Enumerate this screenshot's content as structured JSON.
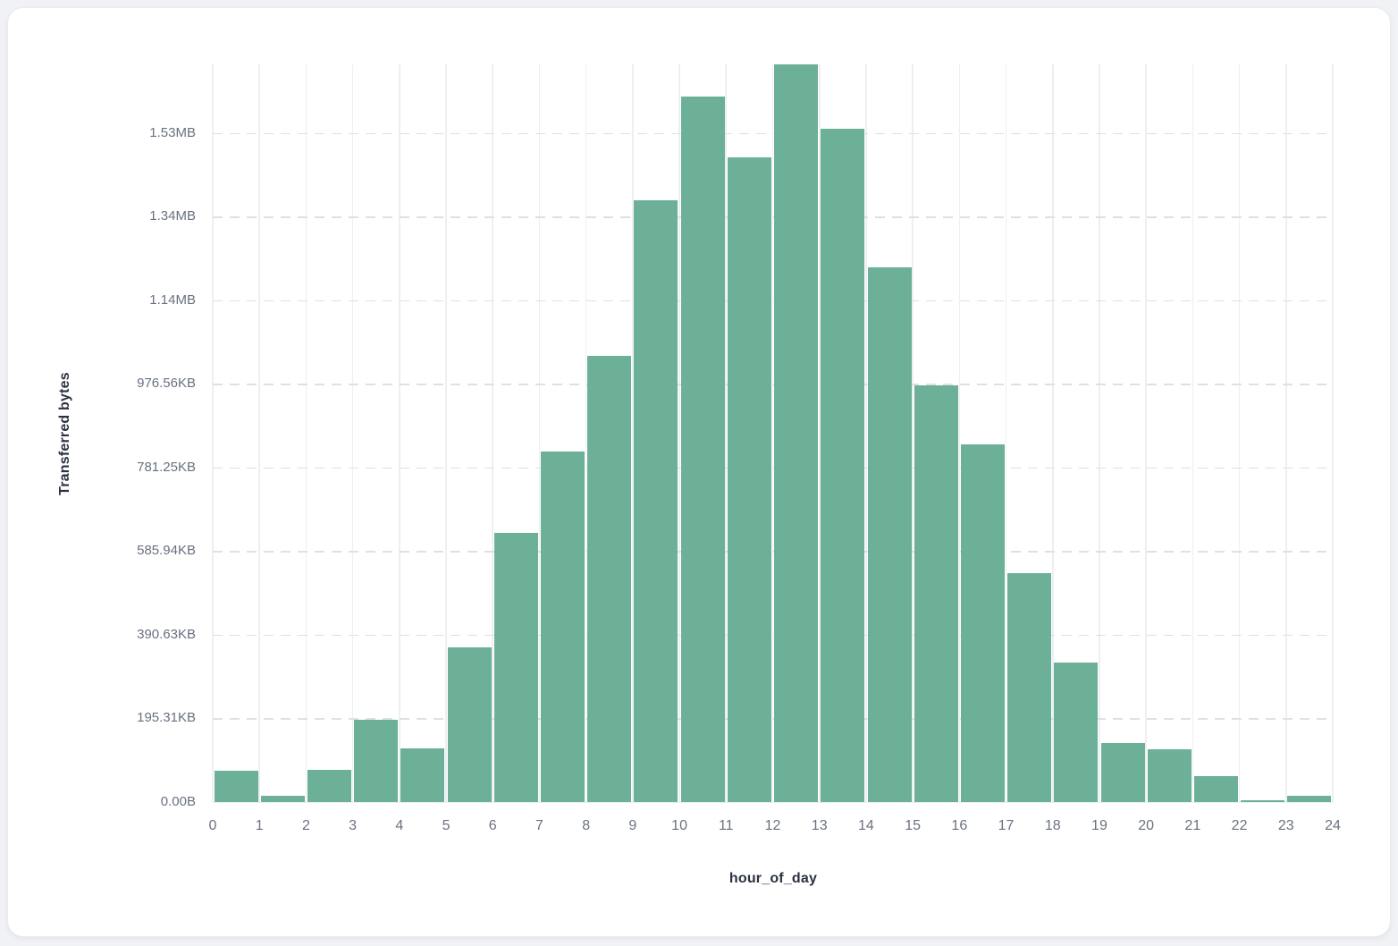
{
  "page": {
    "background": "#f1f2f6"
  },
  "card": {
    "background": "#ffffff",
    "border_color": "#e9ebef"
  },
  "chart_data": {
    "type": "bar",
    "subtype": "histogram",
    "title": "",
    "xlabel": "hour_of_day",
    "ylabel": "Transferred bytes",
    "bar_color": "#6cb098",
    "grid": {
      "vertical": "solid",
      "horizontal": "dashed",
      "legend": "none"
    },
    "x_bin_edges": [
      0,
      1,
      2,
      3,
      4,
      5,
      6,
      7,
      8,
      9,
      10,
      11,
      12,
      13,
      14,
      15,
      16,
      17,
      18,
      19,
      20,
      21,
      22,
      23,
      24
    ],
    "x_tick_labels": [
      "0",
      "1",
      "2",
      "3",
      "4",
      "5",
      "6",
      "7",
      "8",
      "9",
      "10",
      "11",
      "12",
      "13",
      "14",
      "15",
      "16",
      "17",
      "18",
      "19",
      "20",
      "21",
      "22",
      "23",
      "24"
    ],
    "hours": [
      0,
      1,
      2,
      3,
      4,
      5,
      6,
      7,
      8,
      9,
      10,
      11,
      12,
      13,
      14,
      15,
      16,
      17,
      18,
      19,
      20,
      21,
      22,
      23
    ],
    "values_bytes": [
      74000,
      16000,
      78000,
      197000,
      128000,
      370000,
      644000,
      838000,
      1066000,
      1440000,
      1686000,
      1541000,
      1764000,
      1611000,
      1278000,
      996000,
      855000,
      548000,
      334000,
      142000,
      127000,
      61000,
      4500,
      15000
    ],
    "y_tick_labels": [
      "0.00B",
      "195.31KB",
      "390.63KB",
      "585.94KB",
      "781.25KB",
      "976.56KB",
      "1.14MB",
      "1.34MB",
      "1.53MB"
    ],
    "y_tick_bytes": [
      0,
      200000,
      400000,
      600000,
      800000,
      1000000,
      1200000,
      1400000,
      1600000
    ],
    "ylim": [
      0,
      1764000
    ]
  }
}
